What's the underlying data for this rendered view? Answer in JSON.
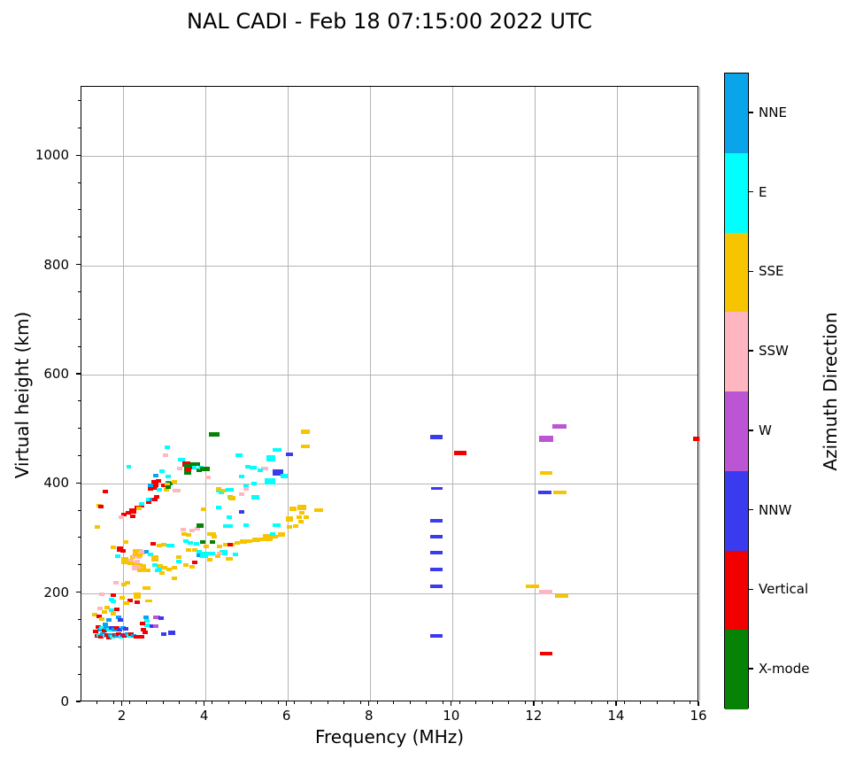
{
  "chart_data": {
    "type": "scatter",
    "title": "NAL CADI - Feb 18 07:15:00 2022 UTC",
    "xlabel": "Frequency (MHz)",
    "ylabel": "Virtual height (km)",
    "xlim": [
      1,
      16
    ],
    "ylim": [
      0,
      1127
    ],
    "x_major_ticks": [
      2,
      4,
      6,
      8,
      10,
      12,
      14,
      16
    ],
    "x_minor_step": 0.4,
    "y_major_ticks": [
      0,
      200,
      400,
      600,
      800,
      1000
    ],
    "y_minor_step": 50,
    "grid": true,
    "grid_color": "#b4b4b4",
    "legend_position": "right-colorbar",
    "colorbar": {
      "title": "Azimuth Direction",
      "categories_top_to_bottom": [
        {
          "label": "NNE",
          "color": "#09a4ea"
        },
        {
          "label": "E",
          "color": "#00ffff"
        },
        {
          "label": "SSE",
          "color": "#f6c500"
        },
        {
          "label": "SSW",
          "color": "#ffb6c1"
        },
        {
          "label": "W",
          "color": "#bb55d4"
        },
        {
          "label": "NNW",
          "color": "#3a3aee"
        },
        {
          "label": "Vertical",
          "color": "#f20000"
        },
        {
          "label": "X-mode",
          "color": "#068206"
        }
      ]
    },
    "point_format": "[frequency_MHz, virtual_height_km, azimuth_category, marker_w_px_opt, marker_h_px_opt]",
    "points": [
      [
        1.38,
        121,
        "V"
      ],
      [
        1.43,
        124,
        "E"
      ],
      [
        1.48,
        120,
        "V"
      ],
      [
        1.52,
        125,
        "NNE"
      ],
      [
        1.57,
        121,
        "E"
      ],
      [
        1.62,
        124,
        "V"
      ],
      [
        1.66,
        119,
        "V"
      ],
      [
        1.71,
        124,
        "NNE"
      ],
      [
        1.76,
        120,
        "E"
      ],
      [
        1.81,
        124,
        "V"
      ],
      [
        1.86,
        121,
        "NNE"
      ],
      [
        1.91,
        125,
        "V"
      ],
      [
        1.96,
        120,
        "E"
      ],
      [
        2.01,
        124,
        "NNW"
      ],
      [
        2.06,
        121,
        "V"
      ],
      [
        2.11,
        125,
        "NNE"
      ],
      [
        2.16,
        121,
        "E"
      ],
      [
        2.21,
        125,
        "V"
      ],
      [
        2.27,
        122,
        "NNE"
      ],
      [
        2.33,
        120,
        "V"
      ],
      [
        2.46,
        120,
        "V"
      ],
      [
        2.51,
        133,
        "V"
      ],
      [
        2.55,
        128,
        "V"
      ],
      [
        3.0,
        125,
        "NNW"
      ],
      [
        3.2,
        127,
        "NNW",
        8,
        5
      ],
      [
        2.72,
        139,
        "NNW"
      ],
      [
        2.81,
        139,
        "W"
      ],
      [
        2.59,
        141,
        "E"
      ],
      [
        1.4,
        138,
        "V"
      ],
      [
        1.45,
        133,
        "NNE"
      ],
      [
        1.5,
        137,
        "E"
      ],
      [
        1.55,
        132,
        "V"
      ],
      [
        1.6,
        136,
        "NNE"
      ],
      [
        1.67,
        133,
        "E"
      ],
      [
        1.74,
        137,
        "NNW"
      ],
      [
        1.8,
        133,
        "NNE"
      ],
      [
        1.86,
        136,
        "V"
      ],
      [
        1.93,
        133,
        "NNW"
      ],
      [
        2.0,
        137,
        "NNE"
      ],
      [
        2.07,
        134,
        "NNW"
      ],
      [
        2.57,
        156,
        "NNE"
      ],
      [
        2.59,
        149,
        "E"
      ],
      [
        2.83,
        156,
        "W",
        8,
        4
      ],
      [
        2.94,
        154,
        "NNW"
      ],
      [
        2.48,
        144,
        "V"
      ],
      [
        1.35,
        130,
        "V"
      ],
      [
        1.45,
        172,
        "SSW"
      ],
      [
        1.32,
        161,
        "SSE"
      ],
      [
        1.62,
        174,
        "SSE"
      ],
      [
        1.55,
        166,
        "SSE"
      ],
      [
        1.42,
        158,
        "V"
      ],
      [
        1.72,
        168,
        "E"
      ],
      [
        1.77,
        162,
        "SSE"
      ],
      [
        1.5,
        152,
        "SSE"
      ],
      [
        1.85,
        170,
        "V"
      ],
      [
        2.18,
        186,
        "V"
      ],
      [
        1.77,
        185,
        "E"
      ],
      [
        2.36,
        184,
        "V"
      ],
      [
        2.1,
        181,
        "SSE"
      ],
      [
        1.67,
        150,
        "NNE"
      ],
      [
        1.9,
        155,
        "NNE"
      ],
      [
        1.95,
        150,
        "NNW"
      ],
      [
        1.58,
        143,
        "NNE"
      ],
      [
        2.35,
        195,
        "SSE",
        8,
        7
      ],
      [
        2.63,
        185,
        "SSE",
        8,
        3
      ],
      [
        1.77,
        283,
        "SSE"
      ],
      [
        1.93,
        280,
        "V",
        7,
        6
      ],
      [
        2.0,
        278,
        "V"
      ],
      [
        2.07,
        294,
        "SSE"
      ],
      [
        1.88,
        268,
        "E"
      ],
      [
        2.06,
        260,
        "SSE",
        8,
        8
      ],
      [
        2.12,
        256,
        "SSE"
      ],
      [
        2.25,
        266,
        "SSE"
      ],
      [
        2.31,
        277,
        "SSE"
      ],
      [
        2.42,
        278,
        "SSE"
      ],
      [
        2.49,
        274,
        "SSE"
      ],
      [
        2.3,
        268,
        "SSW"
      ],
      [
        2.4,
        266,
        "SSW"
      ],
      [
        2.31,
        254,
        "SSE"
      ],
      [
        2.42,
        252,
        "SSE"
      ],
      [
        2.5,
        250,
        "SSE"
      ],
      [
        2.33,
        247,
        "SSW",
        9,
        6
      ],
      [
        2.45,
        245,
        "SSW"
      ],
      [
        1.84,
        219,
        "SSW"
      ],
      [
        2.03,
        216,
        "SSE"
      ],
      [
        2.12,
        219,
        "SSE"
      ],
      [
        1.49,
        198,
        "SSW"
      ],
      [
        1.77,
        196,
        "V"
      ],
      [
        1.73,
        188,
        "E"
      ],
      [
        1.99,
        191,
        "SSE"
      ],
      [
        2.45,
        242,
        "SSE",
        8,
        4
      ],
      [
        2.53,
        242,
        "SSW"
      ],
      [
        2.88,
        242,
        "E",
        8,
        4
      ],
      [
        2.96,
        237,
        "SSE"
      ],
      [
        3.48,
        316,
        "SSW"
      ],
      [
        3.69,
        315,
        "SSW"
      ],
      [
        3.82,
        318,
        "SSW"
      ],
      [
        3.89,
        324,
        "X",
        8,
        5
      ],
      [
        3.95,
        293,
        "X"
      ],
      [
        3.5,
        308,
        "SSE"
      ],
      [
        3.61,
        307,
        "SSE"
      ],
      [
        4.14,
        308,
        "SSE",
        8,
        4
      ],
      [
        4.23,
        303,
        "SSE"
      ],
      [
        3.54,
        295,
        "E"
      ],
      [
        3.65,
        292,
        "E"
      ],
      [
        3.8,
        290,
        "E"
      ],
      [
        2.74,
        290,
        "V"
      ],
      [
        2.89,
        287,
        "SSE"
      ],
      [
        3.0,
        289,
        "SSE"
      ],
      [
        3.17,
        287,
        "E",
        9,
        4
      ],
      [
        2.57,
        276,
        "NNE"
      ],
      [
        2.31,
        271,
        "SSE"
      ],
      [
        2.42,
        269,
        "SSE"
      ],
      [
        2.46,
        276,
        "SSW"
      ],
      [
        2.68,
        271,
        "E"
      ],
      [
        2.79,
        263,
        "SSE",
        8,
        7
      ],
      [
        2.2,
        260,
        "SSW"
      ],
      [
        2.36,
        258,
        "SSW"
      ],
      [
        2.18,
        255,
        "SSE"
      ],
      [
        2.79,
        251,
        "E"
      ],
      [
        2.89,
        248,
        "E"
      ],
      [
        2.51,
        243,
        "SSE"
      ],
      [
        2.61,
        242,
        "SSE"
      ],
      [
        2.92,
        250,
        "SSE"
      ],
      [
        3.02,
        247,
        "SSE"
      ],
      [
        3.13,
        243,
        "SSE"
      ],
      [
        3.26,
        247,
        "SSE"
      ],
      [
        3.37,
        258,
        "E"
      ],
      [
        3.37,
        266,
        "SSE"
      ],
      [
        3.61,
        279,
        "SSE"
      ],
      [
        3.76,
        279,
        "SSE"
      ],
      [
        3.76,
        256,
        "V"
      ],
      [
        3.54,
        251,
        "SSE"
      ],
      [
        3.69,
        248,
        "SSE"
      ],
      [
        3.86,
        276,
        "E"
      ],
      [
        3.86,
        269,
        "NNE"
      ],
      [
        4.04,
        285,
        "SSE"
      ],
      [
        4.14,
        272,
        "E",
        9,
        4
      ],
      [
        4.12,
        261,
        "SSE"
      ],
      [
        3.26,
        227,
        "SSE"
      ],
      [
        2.57,
        209,
        "SSE",
        9,
        4
      ],
      [
        3.97,
        270,
        "E",
        9,
        7
      ],
      [
        4.45,
        274,
        "E",
        9,
        6
      ],
      [
        4.36,
        272,
        "SSW"
      ],
      [
        4.3,
        268,
        "SSE"
      ],
      [
        4.73,
        270,
        "E"
      ],
      [
        4.58,
        262,
        "SSE",
        8,
        4
      ],
      [
        4.36,
        285,
        "SSE"
      ],
      [
        4.51,
        289,
        "SSE"
      ],
      [
        4.66,
        289,
        "SSE"
      ],
      [
        4.79,
        292,
        "SSE"
      ],
      [
        4.94,
        294,
        "SSE",
        8,
        5
      ],
      [
        5.09,
        295,
        "SSE"
      ],
      [
        5.24,
        297,
        "SSE",
        9,
        5
      ],
      [
        5.39,
        298,
        "SSE"
      ],
      [
        5.55,
        300,
        "SSE",
        9,
        6
      ],
      [
        5.7,
        303,
        "SSE"
      ],
      [
        5.85,
        307,
        "SSE",
        8,
        5
      ],
      [
        4.62,
        289,
        "V"
      ],
      [
        4.19,
        293,
        "X"
      ],
      [
        5.52,
        303,
        "SSE",
        10,
        6
      ],
      [
        5.65,
        308,
        "E"
      ],
      [
        4.19,
        308,
        "SSE",
        8,
        4
      ],
      [
        5.74,
        324,
        "E",
        9,
        4
      ],
      [
        4.99,
        324,
        "E"
      ],
      [
        4.62,
        323,
        "E"
      ],
      [
        4.51,
        323,
        "E"
      ],
      [
        6.13,
        355,
        "SSE",
        8,
        5
      ],
      [
        6.36,
        357,
        "SSE",
        10,
        6
      ],
      [
        6.36,
        347,
        "SSE"
      ],
      [
        6.77,
        352,
        "SSE",
        10,
        4
      ],
      [
        6.28,
        339,
        "SSE"
      ],
      [
        6.45,
        339,
        "SSE"
      ],
      [
        6.06,
        336,
        "SSE",
        8,
        6
      ],
      [
        6.06,
        321,
        "SSE"
      ],
      [
        6.19,
        323,
        "SSE"
      ],
      [
        6.34,
        331,
        "SSE"
      ],
      [
        4.88,
        349,
        "NNW"
      ],
      [
        4.34,
        388,
        "E"
      ],
      [
        4.4,
        384,
        "E"
      ],
      [
        4.62,
        376,
        "E"
      ],
      [
        4.68,
        373,
        "E"
      ],
      [
        4.88,
        381,
        "SSW"
      ],
      [
        5.22,
        375,
        "E",
        9,
        5
      ],
      [
        4.66,
        373,
        "SSE",
        8,
        5
      ],
      [
        4.34,
        357,
        "E"
      ],
      [
        3.97,
        353,
        "SSE"
      ],
      [
        4.58,
        339,
        "E"
      ],
      [
        5.58,
        405,
        "E",
        12,
        7
      ],
      [
        4.99,
        396,
        "E"
      ],
      [
        5.2,
        401,
        "E"
      ],
      [
        2.03,
        344,
        "V"
      ],
      [
        2.14,
        347,
        "V"
      ],
      [
        2.25,
        350,
        "V",
        8,
        6
      ],
      [
        2.25,
        341,
        "V"
      ],
      [
        2.36,
        357,
        "V"
      ],
      [
        2.46,
        360,
        "V"
      ],
      [
        2.46,
        364,
        "E"
      ],
      [
        2.64,
        367,
        "V"
      ],
      [
        2.64,
        372,
        "E"
      ],
      [
        2.72,
        371,
        "NNE"
      ],
      [
        2.79,
        371,
        "V"
      ],
      [
        2.83,
        376,
        "V"
      ],
      [
        1.97,
        339,
        "SSW"
      ],
      [
        2.4,
        355,
        "SSE"
      ],
      [
        1.43,
        360,
        "SSE"
      ],
      [
        1.47,
        358,
        "V"
      ],
      [
        1.58,
        386,
        "V"
      ],
      [
        1.39,
        321,
        "SSE"
      ],
      [
        2.79,
        401,
        "V",
        8,
        8
      ],
      [
        2.79,
        392,
        "V"
      ],
      [
        2.89,
        389,
        "E"
      ],
      [
        3.0,
        397,
        "V"
      ],
      [
        3.11,
        402,
        "NNE"
      ],
      [
        3.15,
        401,
        "X"
      ],
      [
        3.26,
        404,
        "SSE"
      ],
      [
        4.08,
        412,
        "SSW"
      ],
      [
        3.54,
        436,
        "V",
        9,
        6
      ],
      [
        3.58,
        422,
        "X",
        8,
        6
      ],
      [
        3.86,
        425,
        "X"
      ],
      [
        3.7,
        430,
        "E",
        9,
        4
      ],
      [
        2.87,
        405,
        "V"
      ],
      [
        3.11,
        414,
        "E"
      ],
      [
        2.81,
        415,
        "NNE"
      ],
      [
        2.96,
        423,
        "E"
      ],
      [
        3.09,
        399,
        "SSE"
      ],
      [
        3.07,
        389,
        "SSE"
      ],
      [
        3.11,
        394,
        "X"
      ],
      [
        3.32,
        388,
        "SSW",
        9,
        4
      ],
      [
        2.77,
        394,
        "V"
      ],
      [
        2.68,
        397,
        "NNE"
      ],
      [
        2.68,
        391,
        "V"
      ],
      [
        3.05,
        452,
        "SSW"
      ],
      [
        3.09,
        467,
        "E"
      ],
      [
        3.43,
        444,
        "E",
        8,
        4
      ],
      [
        3.71,
        436,
        "X",
        7,
        4
      ],
      [
        3.82,
        436,
        "X"
      ],
      [
        3.91,
        430,
        "E"
      ],
      [
        4.0,
        427,
        "X",
        11,
        5
      ],
      [
        3.6,
        431,
        "X",
        9,
        6
      ],
      [
        3.6,
        426,
        "V",
        7,
        4
      ],
      [
        3.39,
        428,
        "SSW"
      ],
      [
        4.83,
        452,
        "E",
        8,
        4
      ],
      [
        5.05,
        431,
        "E"
      ],
      [
        4.88,
        414,
        "E"
      ],
      [
        4.34,
        391,
        "SSE"
      ],
      [
        4.45,
        388,
        "SSE"
      ],
      [
        4.6,
        389,
        "E",
        9,
        4
      ],
      [
        4.99,
        391,
        "SSW"
      ],
      [
        6.43,
        495,
        "SSE",
        10,
        5
      ],
      [
        6.43,
        469,
        "SSE",
        10,
        4
      ],
      [
        6.06,
        454,
        "NNW",
        8,
        4
      ],
      [
        5.76,
        462,
        "E",
        10,
        4
      ],
      [
        5.59,
        446,
        "E",
        10,
        7
      ],
      [
        5.16,
        430,
        "E",
        8,
        4
      ],
      [
        5.44,
        428,
        "SSW",
        8,
        4
      ],
      [
        5.35,
        425,
        "E"
      ],
      [
        5.78,
        420,
        "NNW",
        12,
        7
      ],
      [
        5.93,
        414,
        "E",
        8,
        5
      ],
      [
        4.23,
        491,
        "X",
        12,
        5
      ],
      [
        2.15,
        432,
        "E",
        5,
        4
      ],
      [
        9.62,
        485,
        "NNW",
        14,
        5
      ],
      [
        9.62,
        392,
        "NNW",
        13,
        3
      ],
      [
        9.62,
        333,
        "NNW",
        14,
        4
      ],
      [
        9.62,
        304,
        "NNW",
        14,
        4
      ],
      [
        9.62,
        274,
        "NNW",
        14,
        4
      ],
      [
        9.62,
        243,
        "NNW",
        14,
        4
      ],
      [
        9.62,
        212,
        "NNW",
        14,
        4
      ],
      [
        9.62,
        122,
        "NNW",
        14,
        4
      ],
      [
        10.2,
        456,
        "V",
        14,
        5
      ],
      [
        12.6,
        505,
        "W",
        16,
        5
      ],
      [
        12.28,
        482,
        "W",
        16,
        7
      ],
      [
        12.28,
        420,
        "SSE",
        14,
        4
      ],
      [
        12.25,
        384,
        "NNW",
        15,
        4
      ],
      [
        12.62,
        384,
        "SSE",
        15,
        4
      ],
      [
        11.95,
        212,
        "SSE",
        15,
        4
      ],
      [
        12.28,
        202,
        "SSW",
        15,
        5
      ],
      [
        12.65,
        195,
        "SSE",
        15,
        4
      ],
      [
        12.28,
        89,
        "V",
        14,
        4
      ],
      [
        15.92,
        483,
        "V",
        7,
        5
      ]
    ]
  }
}
